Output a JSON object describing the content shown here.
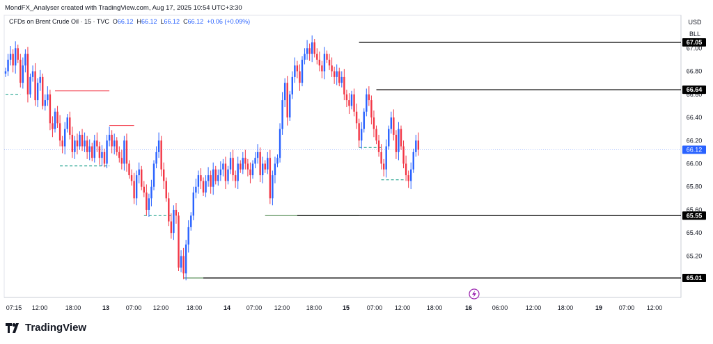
{
  "header": {
    "credit": "MondFX_Analyser created with TradingView.com, Aug 17, 2025 10:54 UTC+3:30"
  },
  "symbol": {
    "name": "CFDs on Brent Crude Oil · 15 · TVC",
    "open_label": "O",
    "open": "66.12",
    "high_label": "H",
    "high": "66.12",
    "low_label": "L",
    "low": "66.12",
    "close_label": "C",
    "close": "66.12",
    "change": "+0.06 (+0.09%)"
  },
  "price_axis": {
    "currency": "USD",
    "unit": "BLL"
  },
  "footer": {
    "brand": "TradingView"
  },
  "colors": {
    "up": "#2962ff",
    "down": "#f23645",
    "level_line": "#000000",
    "current_price": "#2962ff"
  },
  "chart_data": {
    "type": "candlestick",
    "title": "CFDs on Brent Crude Oil · 15 · TVC",
    "ylim": [
      64.96,
      67.12
    ],
    "y_ticks": [
      "67.00",
      "66.80",
      "66.60",
      "66.40",
      "66.20",
      "66.00",
      "65.80",
      "65.60",
      "65.40",
      "65.20"
    ],
    "x_ticks": [
      "07:15",
      "12:00",
      "18:00",
      "13",
      "07:00",
      "12:00",
      "18:00",
      "14",
      "07:00",
      "12:00",
      "18:00",
      "15",
      "07:00",
      "12:00",
      "18:00",
      "16",
      "06:00",
      "12:00",
      "18:00",
      "19",
      "07:00",
      "12:00"
    ],
    "bold_x_ticks": [
      "13",
      "14",
      "15",
      "16",
      "19"
    ],
    "horizontal_levels": [
      {
        "price": 67.05,
        "label": "67.05"
      },
      {
        "price": 66.64,
        "label": "66.64"
      },
      {
        "price": 65.55,
        "label": "65.55"
      },
      {
        "price": 65.01,
        "label": "65.01"
      }
    ],
    "current_price": {
      "price": 66.12,
      "label": "66.12"
    },
    "highlight_segments": [
      {
        "from_bar": 20,
        "to_bar": 42,
        "price": 66.63,
        "style": "red"
      },
      {
        "from_bar": 42,
        "to_bar": 52,
        "price": 66.33,
        "style": "red"
      },
      {
        "from_bar": 150,
        "to_bar": 172,
        "price": 66.64,
        "style": "red"
      },
      {
        "from_bar": 0,
        "to_bar": 6,
        "price": 66.6,
        "style": "green-dash"
      },
      {
        "from_bar": 22,
        "to_bar": 42,
        "price": 65.98,
        "style": "green-dash"
      },
      {
        "from_bar": 56,
        "to_bar": 68,
        "price": 65.55,
        "style": "green-dash"
      },
      {
        "from_bar": 72,
        "to_bar": 105,
        "price": 65.01,
        "style": "green"
      },
      {
        "from_bar": 105,
        "to_bar": 143,
        "price": 65.55,
        "style": "green"
      },
      {
        "from_bar": 143,
        "to_bar": 152,
        "price": 66.14,
        "style": "green-dash"
      },
      {
        "from_bar": 152,
        "to_bar": 162,
        "price": 65.86,
        "style": "green-dash"
      }
    ],
    "close_series": [
      66.8,
      66.9,
      66.95,
      66.85,
      67.0,
      66.9,
      66.7,
      66.85,
      66.95,
      66.6,
      66.75,
      66.8,
      66.55,
      66.7,
      66.75,
      66.5,
      66.55,
      66.6,
      66.35,
      66.3,
      66.45,
      66.35,
      66.2,
      66.15,
      66.3,
      66.4,
      66.25,
      66.1,
      66.2,
      66.15,
      66.25,
      66.15,
      66.2,
      66.1,
      66.15,
      66.05,
      66.2,
      66.15,
      66.05,
      66.1,
      66.0,
      66.2,
      66.25,
      66.15,
      66.2,
      66.1,
      66.05,
      66.0,
      66.2,
      66.0,
      65.9,
      65.85,
      65.7,
      65.9,
      65.95,
      65.8,
      65.75,
      65.6,
      65.7,
      65.8,
      66.0,
      66.1,
      66.2,
      65.95,
      65.85,
      65.7,
      65.5,
      65.4,
      65.6,
      65.55,
      65.1,
      65.2,
      65.05,
      65.3,
      65.45,
      65.55,
      65.75,
      65.8,
      65.9,
      65.85,
      65.75,
      65.85,
      65.9,
      65.8,
      65.95,
      65.85,
      65.9,
      65.95,
      66.0,
      65.85,
      65.95,
      66.05,
      65.9,
      65.85,
      66.0,
      65.95,
      66.05,
      66.0,
      65.95,
      65.9,
      66.0,
      66.05,
      66.1,
      65.9,
      66.0,
      65.95,
      66.05,
      65.7,
      65.9,
      66.0,
      66.05,
      66.3,
      66.55,
      66.7,
      66.4,
      66.6,
      66.75,
      66.85,
      66.8,
      66.7,
      66.9,
      66.95,
      67.0,
      66.95,
      67.05,
      66.95,
      66.9,
      66.85,
      66.8,
      66.95,
      66.9,
      66.85,
      66.8,
      66.75,
      66.8,
      66.7,
      66.75,
      66.6,
      66.55,
      66.5,
      66.6,
      66.45,
      66.35,
      66.2,
      66.3,
      66.45,
      66.6,
      66.55,
      66.4,
      66.3,
      66.2,
      66.1,
      66.0,
      65.95,
      66.15,
      66.3,
      66.4,
      66.25,
      66.1,
      66.3,
      66.15,
      66.0,
      65.9,
      65.85,
      65.95,
      66.1,
      66.2,
      66.12
    ]
  }
}
